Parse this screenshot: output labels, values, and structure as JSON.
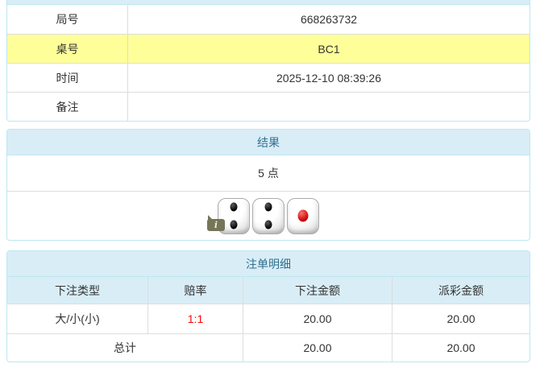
{
  "colors": {
    "panel_border": "#bce8f1",
    "panel_heading_bg": "#d9edf7",
    "panel_heading_text": "#31708f",
    "row_highlight": "#ffff99",
    "cell_border": "#dddddd",
    "body_text": "#333333",
    "odds_red": "#ff0000"
  },
  "info_table": {
    "rows": [
      {
        "label": "局号",
        "value": "668263732",
        "highlight": false
      },
      {
        "label": "桌号",
        "value": "BC1",
        "highlight": true
      },
      {
        "label": "时间",
        "value": "2025-12-10 08:39:26",
        "highlight": false
      },
      {
        "label": "备注",
        "value": "",
        "highlight": false
      }
    ]
  },
  "result_panel": {
    "title": "结果",
    "points_text": "5 点",
    "dice": [
      {
        "value": 2,
        "pip_color": "black"
      },
      {
        "value": 2,
        "pip_color": "black"
      },
      {
        "value": 1,
        "pip_color": "red"
      }
    ],
    "info_icon": "i"
  },
  "bet_panel": {
    "title": "注单明细",
    "columns": [
      "下注类型",
      "赔率",
      "下注金额",
      "派彩金额"
    ],
    "rows": [
      {
        "bet_type": "大/小(小)",
        "odds": "1:1",
        "bet_amount": "20.00",
        "payout_amount": "20.00"
      }
    ],
    "total": {
      "label": "总计",
      "bet_amount": "20.00",
      "payout_amount": "20.00"
    }
  }
}
